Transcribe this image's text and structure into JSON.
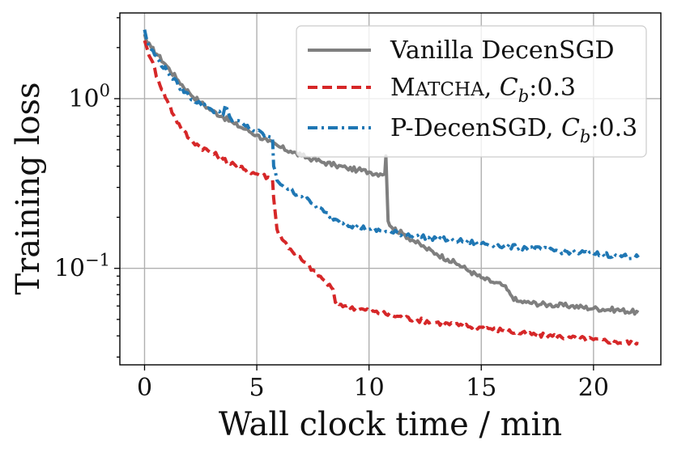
{
  "chart_data": {
    "type": "line",
    "xlabel": "Wall clock time / min",
    "ylabel": "Training loss",
    "xlim": [
      -1.1,
      23.0
    ],
    "ylim": [
      0.027,
      3.2
    ],
    "yscale": "log",
    "grid": true,
    "legend_position": "top-right",
    "x_ticks": [
      {
        "value": 0,
        "label": "0"
      },
      {
        "value": 5,
        "label": "5"
      },
      {
        "value": 10,
        "label": "10"
      },
      {
        "value": 15,
        "label": "15"
      },
      {
        "value": 20,
        "label": "20"
      }
    ],
    "y_major_ticks": [
      {
        "value": 1.0,
        "base": "10",
        "exp": "0"
      },
      {
        "value": 0.1,
        "base": "10",
        "exp": "−1"
      }
    ],
    "y_minor_ticks": [
      0.03,
      0.04,
      0.05,
      0.06,
      0.07,
      0.08,
      0.09,
      0.2,
      0.3,
      0.4,
      0.5,
      0.6,
      0.7,
      0.8,
      0.9,
      2,
      3
    ],
    "series": [
      {
        "name": "Vanilla DecenSGD",
        "legend_label": "Vanilla DecenSGD",
        "color": "#7f7f7f",
        "style": "solid",
        "x": [
          0.0,
          0.1,
          0.3,
          0.6,
          1.0,
          1.5,
          2.0,
          2.5,
          3.0,
          3.5,
          4.0,
          4.5,
          5.0,
          5.5,
          6.0,
          6.5,
          7.0,
          7.5,
          8.0,
          8.5,
          9.0,
          9.5,
          10.0,
          10.5,
          10.7,
          10.75,
          10.85,
          11.0,
          11.5,
          12.0,
          12.5,
          13.0,
          13.5,
          14.0,
          14.5,
          15.0,
          15.5,
          16.0,
          16.3,
          16.6,
          17.0,
          18.0,
          19.0,
          20.0,
          21.0,
          22.0
        ],
        "y": [
          2.4,
          2.15,
          2.0,
          1.8,
          1.55,
          1.28,
          1.08,
          0.95,
          0.85,
          0.78,
          0.71,
          0.66,
          0.61,
          0.56,
          0.52,
          0.49,
          0.46,
          0.44,
          0.42,
          0.405,
          0.39,
          0.38,
          0.37,
          0.36,
          0.36,
          0.46,
          0.19,
          0.175,
          0.16,
          0.145,
          0.132,
          0.122,
          0.113,
          0.105,
          0.096,
          0.088,
          0.083,
          0.079,
          0.07,
          0.064,
          0.063,
          0.061,
          0.06,
          0.058,
          0.057,
          0.055
        ]
      },
      {
        "name": "MATCHA, Cb:0.3",
        "legend_label": "MATCHA",
        "legend_param_name": "C",
        "legend_param_sub": "b",
        "legend_param_value": ":0.3",
        "color": "#d62728",
        "style": "dashed",
        "x": [
          0.0,
          0.1,
          0.3,
          0.6,
          1.0,
          1.3,
          1.6,
          2.0,
          2.5,
          3.0,
          3.5,
          4.0,
          4.5,
          5.0,
          5.5,
          5.7,
          5.75,
          5.9,
          6.2,
          6.5,
          7.0,
          7.5,
          8.0,
          8.4,
          8.5,
          9.0,
          10.0,
          11.0,
          12.0,
          13.0,
          14.0,
          15.0,
          16.0,
          17.0,
          18.0,
          19.0,
          20.0,
          21.0,
          22.0
        ],
        "y": [
          2.2,
          2.0,
          1.7,
          1.3,
          0.98,
          0.8,
          0.68,
          0.58,
          0.52,
          0.48,
          0.44,
          0.41,
          0.38,
          0.36,
          0.345,
          0.335,
          0.26,
          0.17,
          0.145,
          0.13,
          0.112,
          0.098,
          0.085,
          0.075,
          0.063,
          0.06,
          0.056,
          0.053,
          0.05,
          0.048,
          0.046,
          0.045,
          0.043,
          0.041,
          0.04,
          0.039,
          0.038,
          0.037,
          0.036
        ]
      },
      {
        "name": "P-DecenSGD, Cb:0.3",
        "legend_label": "P-DecenSGD",
        "legend_param_name": "C",
        "legend_param_sub": "b",
        "legend_param_value": ":0.3",
        "color": "#1f77b4",
        "style": "dashdot",
        "x": [
          0.0,
          0.1,
          0.3,
          0.6,
          1.0,
          1.5,
          2.0,
          2.5,
          3.0,
          3.5,
          3.6,
          3.8,
          4.0,
          4.5,
          5.0,
          5.5,
          5.7,
          5.75,
          5.9,
          6.3,
          7.0,
          7.5,
          8.0,
          8.5,
          9.0,
          10.0,
          11.0,
          12.0,
          13.0,
          14.0,
          15.0,
          16.0,
          17.0,
          18.0,
          19.0,
          20.0,
          21.0,
          22.0
        ],
        "y": [
          2.55,
          2.2,
          1.95,
          1.7,
          1.45,
          1.2,
          1.03,
          0.93,
          0.86,
          0.8,
          0.92,
          0.78,
          0.75,
          0.69,
          0.64,
          0.6,
          0.59,
          0.4,
          0.33,
          0.3,
          0.265,
          0.24,
          0.215,
          0.195,
          0.182,
          0.17,
          0.163,
          0.157,
          0.15,
          0.145,
          0.14,
          0.135,
          0.132,
          0.128,
          0.125,
          0.122,
          0.119,
          0.116
        ]
      }
    ]
  }
}
